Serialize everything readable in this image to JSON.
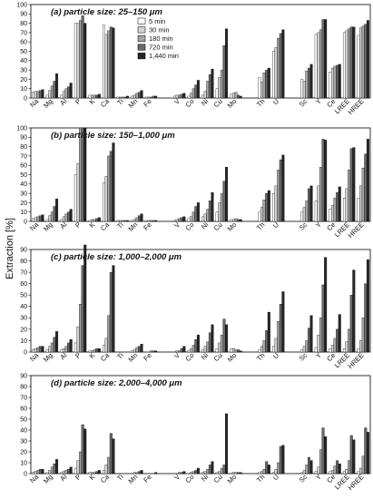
{
  "chart_data": {
    "type": "bar",
    "ylabel": "Extraction [%]",
    "categories": [
      "Na",
      "Mg",
      "Al",
      "P",
      "K",
      "Ca",
      "Ti",
      "Mn",
      "Fe",
      "V",
      "Co",
      "Ni",
      "Cu",
      "Mo",
      "Th",
      "U",
      "Sc",
      "Y",
      "Ce",
      "LREE",
      "HREE"
    ],
    "legend": {
      "placement": "top-center (panel a)",
      "entries": [
        "5 min",
        "30 min",
        "180 min",
        "720 min",
        "1,440 min"
      ]
    },
    "series_colors": [
      "#ffffff",
      "#d2d2d2",
      "#a6a6a6",
      "#696969",
      "#262626"
    ],
    "panels": [
      {
        "title": "(a) particle size: 25–150 μm",
        "ylim": [
          0,
          100
        ],
        "yticks": [
          0,
          10,
          20,
          30,
          40,
          50,
          60,
          70,
          80,
          90,
          100
        ],
        "series": [
          {
            "name": "5 min",
            "values": [
              6,
              3,
              3,
              80,
              3,
              78,
              1,
              2,
              1,
              2,
              2,
              3,
              10,
              4,
              22,
              50,
              20,
              68,
              28,
              70,
              67
            ]
          },
          {
            "name": "30 min",
            "values": [
              7,
              8,
              7,
              80,
              3,
              68,
              1,
              3,
              1,
              3,
              5,
              7,
              22,
              5,
              17,
              54,
              18,
              70,
              32,
              72,
              75
            ]
          },
          {
            "name": "180 min",
            "values": [
              7,
              13,
              10,
              83,
              3,
              72,
              1,
              5,
              1,
              3,
              10,
              18,
              30,
              6,
              27,
              64,
              29,
              73,
              34,
              74,
              77
            ]
          },
          {
            "name": "720 min",
            "values": [
              8,
              18,
              12,
              88,
              3,
              76,
              1,
              6,
              2,
              4,
              14,
              25,
              56,
              3,
              30,
              69,
              32,
              84,
              35,
              76,
              79
            ]
          },
          {
            "name": "1,440 min",
            "values": [
              9,
              26,
              16,
              80,
              4,
              75,
              2,
              8,
              2,
              5,
              19,
              31,
              74,
              2,
              32,
              73,
              36,
              84,
              36,
              76,
              83
            ]
          }
        ]
      },
      {
        "title": "(b) particle size: 150–1,000 μm",
        "ylim": [
          0,
          100
        ],
        "yticks": [
          0,
          10,
          20,
          30,
          40,
          50,
          60,
          70,
          80,
          90,
          100
        ],
        "series": [
          {
            "name": "5 min",
            "values": [
              3,
              2,
              2,
              50,
              1,
              41,
              1,
              1,
              1,
              1,
              3,
              5,
              10,
              2,
              10,
              30,
              10,
              22,
              13,
              25,
              25
            ]
          },
          {
            "name": "30 min",
            "values": [
              4,
              6,
              5,
              62,
              2,
              48,
              1,
              2,
              1,
              2,
              5,
              8,
              20,
              2,
              15,
              38,
              15,
              38,
              17,
              35,
              38
            ]
          },
          {
            "name": "180 min",
            "values": [
              5,
              10,
              8,
              100,
              2,
              70,
              1,
              4,
              1,
              3,
              10,
              13,
              30,
              3,
              23,
              55,
              22,
              58,
              25,
              55,
              57
            ]
          },
          {
            "name": "720 min",
            "values": [
              6,
              16,
              10,
              100,
              3,
              75,
              1,
              6,
              1,
              4,
              16,
              22,
              43,
              2,
              30,
              66,
              35,
              88,
              31,
              78,
              72
            ]
          },
          {
            "name": "1,440 min",
            "values": [
              7,
              24,
              13,
              100,
              4,
              84,
              1,
              8,
              1,
              5,
              20,
              31,
              58,
              2,
              33,
              71,
              38,
              87,
              37,
              79,
              88
            ]
          }
        ]
      },
      {
        "title": "(c) particle size: 1,000–2,000 μm",
        "ylim": [
          0,
          90
        ],
        "yticks": [
          0,
          10,
          20,
          30,
          40,
          50,
          60,
          70,
          80,
          90
        ],
        "series": [
          {
            "name": "5 min",
            "values": [
              2,
              2,
              2,
              8,
              1,
              6,
              0,
              1,
              0,
              0,
              1,
              2,
              3,
              3,
              2,
              5,
              2,
              4,
              3,
              3,
              3
            ]
          },
          {
            "name": "30 min",
            "values": [
              3,
              5,
              3,
              22,
              1,
              12,
              0,
              2,
              0,
              1,
              3,
              5,
              8,
              3,
              5,
              12,
              5,
              15,
              6,
              9,
              10
            ]
          },
          {
            "name": "180 min",
            "values": [
              4,
              8,
              5,
              42,
              2,
              32,
              0,
              4,
              1,
              1,
              6,
              9,
              15,
              2,
              10,
              27,
              10,
              30,
              12,
              20,
              30
            ]
          },
          {
            "name": "720 min",
            "values": [
              5,
              13,
              8,
              76,
              3,
              70,
              0,
              5,
              1,
              3,
              11,
              17,
              29,
              2,
              19,
              42,
              21,
              59,
              20,
              50,
              60
            ]
          },
          {
            "name": "1,440 min",
            "values": [
              5,
              18,
              11,
              94,
              3,
              76,
              0,
              7,
              1,
              5,
              15,
              24,
              24,
              1,
              35,
              53,
              32,
              83,
              33,
              72,
              81
            ]
          }
        ]
      },
      {
        "title": "(d) particle size: 2,000–4,000 μm",
        "ylim": [
          0,
          90
        ],
        "yticks": [
          0,
          10,
          20,
          30,
          40,
          50,
          60,
          70,
          80,
          90
        ],
        "series": [
          {
            "name": "5 min",
            "values": [
              1,
              1,
              1,
              5,
              1,
              3,
              0,
              0,
              0,
              0,
              0,
              1,
              1,
              0,
              1,
              1,
              1,
              2,
              2,
              2,
              2
            ]
          },
          {
            "name": "30 min",
            "values": [
              2,
              3,
              2,
              12,
              1,
              8,
              0,
              1,
              0,
              0,
              1,
              2,
              2,
              1,
              2,
              4,
              3,
              6,
              3,
              4,
              5
            ]
          },
          {
            "name": "180 min",
            "values": [
              3,
              6,
              3,
              20,
              1,
              15,
              0,
              1,
              0,
              1,
              2,
              4,
              5,
              1,
              4,
              10,
              8,
              22,
              7,
              12,
              16
            ]
          },
          {
            "name": "720 min",
            "values": [
              4,
              9,
              4,
              45,
              2,
              37,
              0,
              2,
              0,
              1,
              3,
              8,
              8,
              1,
              11,
              25,
              15,
              42,
              12,
              35,
              42
            ]
          },
          {
            "name": "1,440 min",
            "values": [
              4,
              13,
              6,
              41,
              3,
              32,
              0,
              3,
              1,
              2,
              5,
              11,
              55,
              1,
              8,
              26,
              12,
              34,
              9,
              31,
              38
            ]
          }
        ]
      }
    ]
  }
}
